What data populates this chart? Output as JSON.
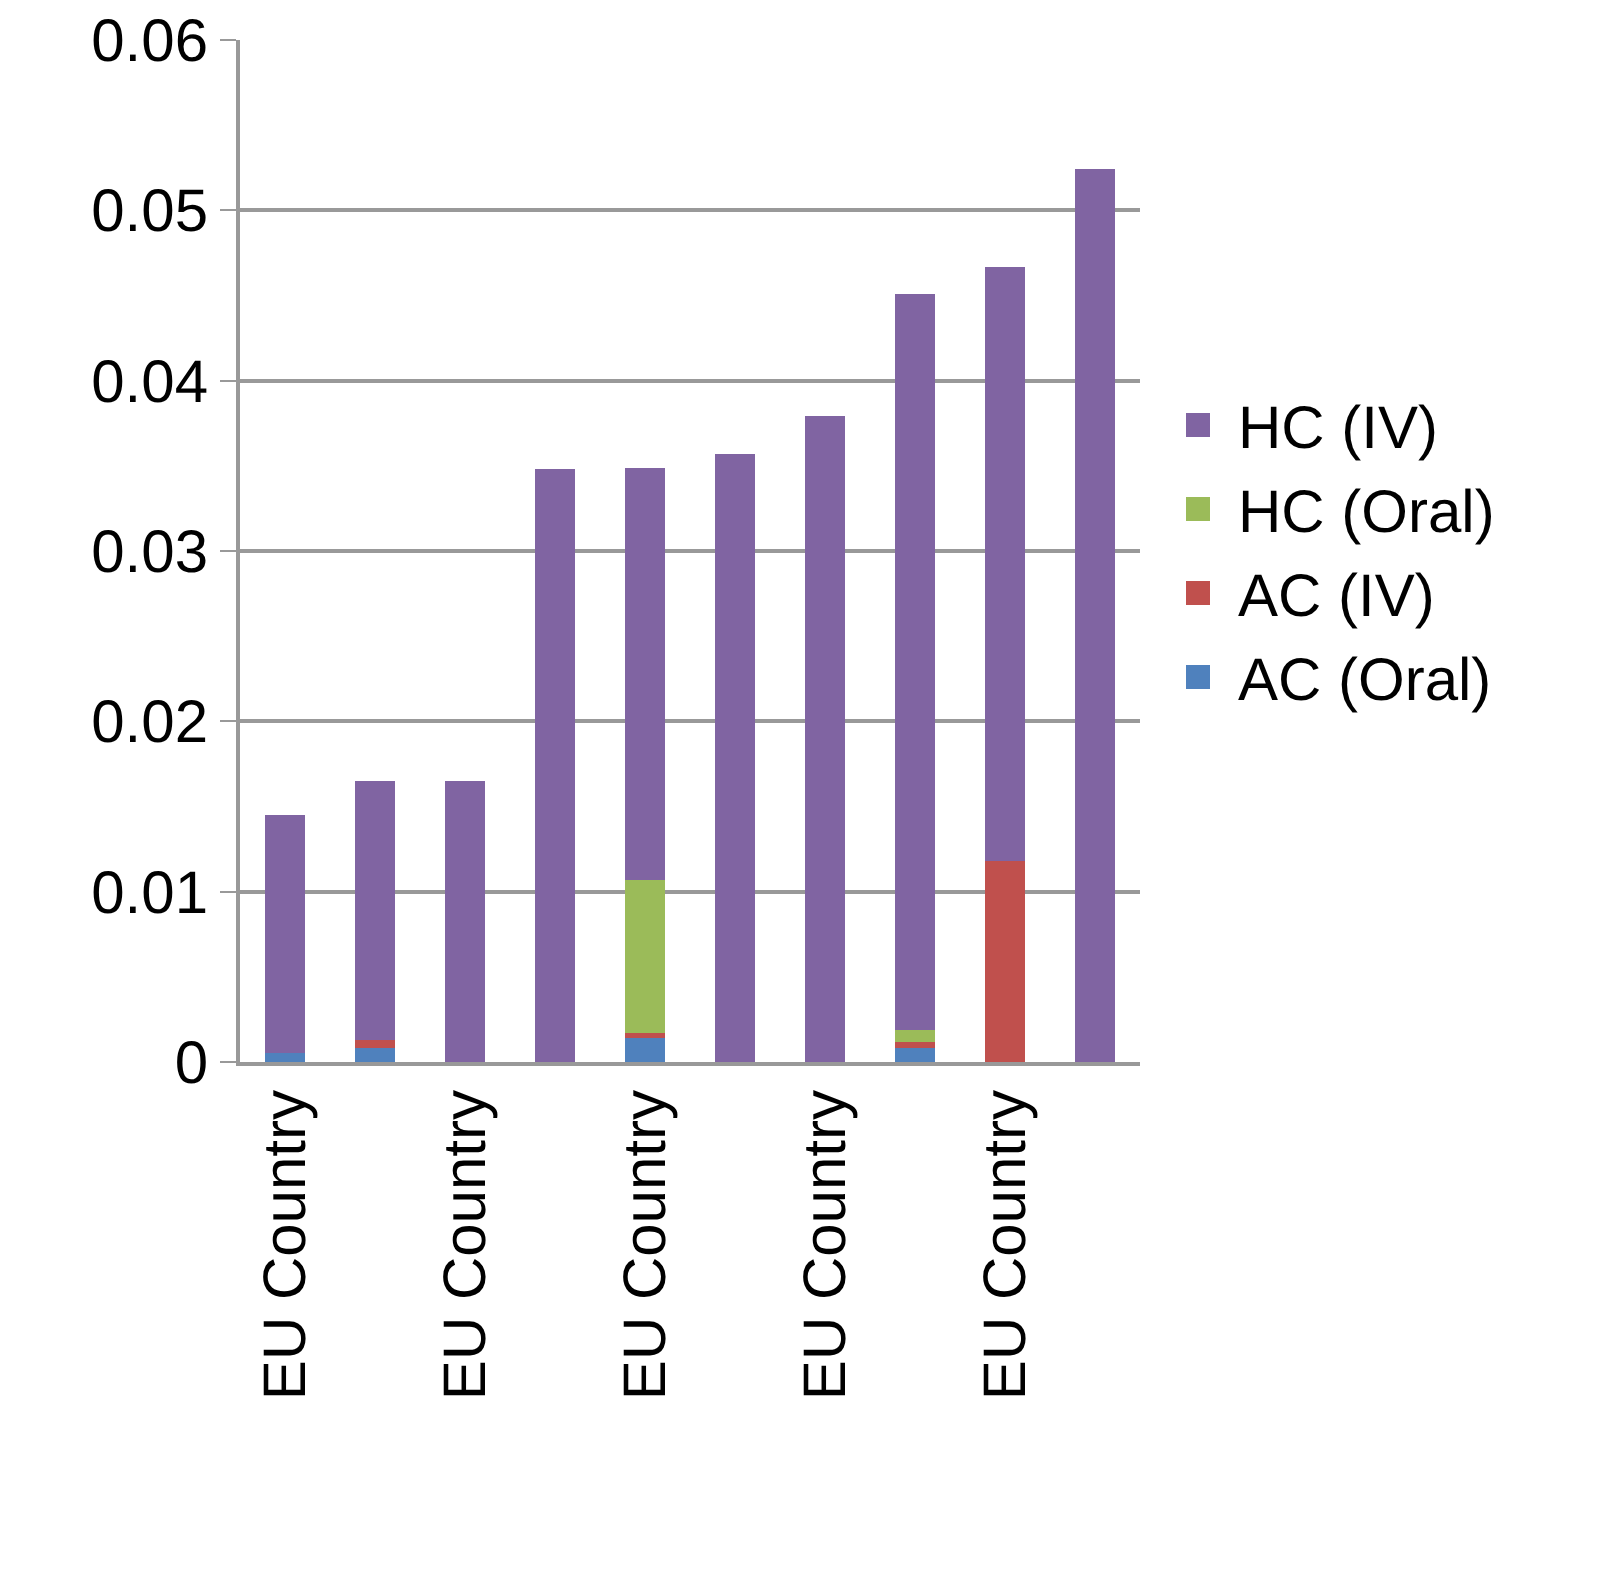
{
  "chart_data": {
    "type": "bar",
    "stacked": true,
    "categories": [
      "EU Country",
      null,
      "EU Country",
      null,
      "EU Country",
      null,
      "EU Country",
      null,
      "EU Country",
      null
    ],
    "series": [
      {
        "name": "AC (Oral)",
        "color": "#4f81bd",
        "values": [
          0.0005,
          0.0008,
          0,
          0,
          0.0014,
          0,
          0,
          0.0008,
          0,
          0
        ]
      },
      {
        "name": "AC (IV)",
        "color": "#c0504d",
        "values": [
          0,
          0.0005,
          0,
          0,
          0.0003,
          0,
          0,
          0.0004,
          0.0118,
          0
        ]
      },
      {
        "name": "HC (Oral)",
        "color": "#9bbb59",
        "values": [
          0,
          0,
          0,
          0,
          0.009,
          0,
          0,
          0.0007,
          0,
          0
        ]
      },
      {
        "name": "HC (IV)",
        "color": "#8064a2",
        "values": [
          0.014,
          0.0152,
          0.0165,
          0.0348,
          0.0242,
          0.0357,
          0.0379,
          0.0432,
          0.0349,
          0.0524
        ]
      }
    ],
    "ylim": [
      0,
      0.06
    ],
    "yticks": [
      0,
      0.01,
      0.02,
      0.03,
      0.04,
      0.05,
      0.06
    ],
    "grid": "y",
    "legend": "right"
  }
}
